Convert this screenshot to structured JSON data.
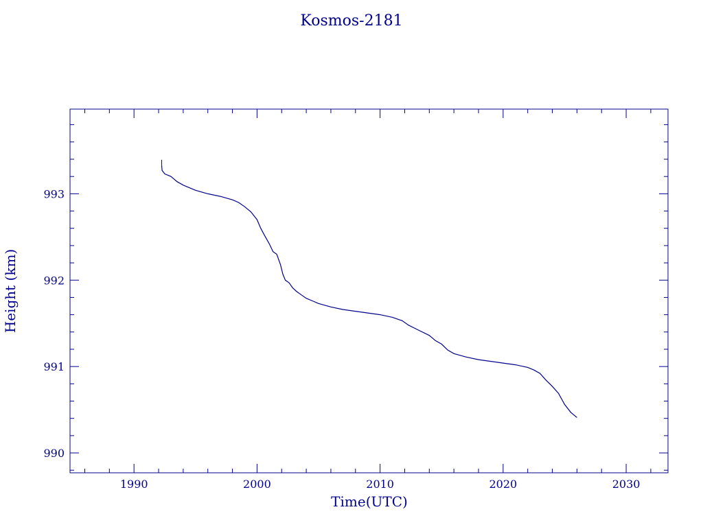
{
  "chart_data": {
    "type": "line",
    "title": "Kosmos-2181",
    "xlabel": "Time(UTC)",
    "ylabel": "Height (km)",
    "xlim": [
      1984.8,
      2033.4
    ],
    "ylim": [
      989.77,
      993.98
    ],
    "x_major_ticks": [
      1990,
      2000,
      2010,
      2020,
      2030
    ],
    "x_minor_step": 2,
    "y_major_ticks": [
      990,
      991,
      992,
      993
    ],
    "y_minor_step": 0.2,
    "x_tick_labels": [
      "1990",
      "2000",
      "2010",
      "2020",
      "2030"
    ],
    "y_tick_labels": [
      "990",
      "991",
      "992",
      "993"
    ],
    "grid": false,
    "color": "#00008b",
    "series": [
      {
        "x": [
          1992.25,
          1992.28,
          1992.5,
          1993.0,
          1993.5,
          1994.0,
          1995.0,
          1996.0,
          1997.0,
          1998.0,
          1998.5,
          1999.0,
          1999.5,
          2000.0,
          2000.3,
          2000.6,
          2001.0,
          2001.3,
          2001.6,
          2001.9,
          2002.1,
          2002.3,
          2002.6,
          2002.9,
          2003.2,
          2003.6,
          2004.0,
          2004.5,
          2005.0,
          2006.0,
          2007.0,
          2008.0,
          2009.0,
          2010.0,
          2011.0,
          2011.8,
          2012.3,
          2013.0,
          2014.0,
          2014.5,
          2015.0,
          2015.5,
          2016.0,
          2017.0,
          2018.0,
          2019.0,
          2020.0,
          2021.0,
          2022.0,
          2022.5,
          2023.0,
          2023.5,
          2024.0,
          2024.5,
          2025.0,
          2025.5,
          2026.0
        ],
        "y": [
          993.33,
          993.27,
          993.23,
          993.2,
          993.14,
          993.1,
          993.04,
          993.0,
          992.97,
          992.93,
          992.9,
          992.85,
          992.79,
          992.7,
          992.6,
          992.52,
          992.42,
          992.33,
          992.3,
          992.18,
          992.07,
          992.0,
          991.97,
          991.91,
          991.87,
          991.83,
          991.79,
          991.76,
          991.73,
          991.69,
          991.66,
          991.64,
          991.62,
          991.6,
          991.57,
          991.53,
          991.48,
          991.43,
          991.36,
          991.3,
          991.26,
          991.19,
          991.15,
          991.11,
          991.08,
          991.06,
          991.04,
          991.02,
          990.99,
          990.96,
          990.92,
          990.84,
          990.77,
          990.69,
          990.56,
          990.47,
          990.41
        ]
      }
    ]
  }
}
